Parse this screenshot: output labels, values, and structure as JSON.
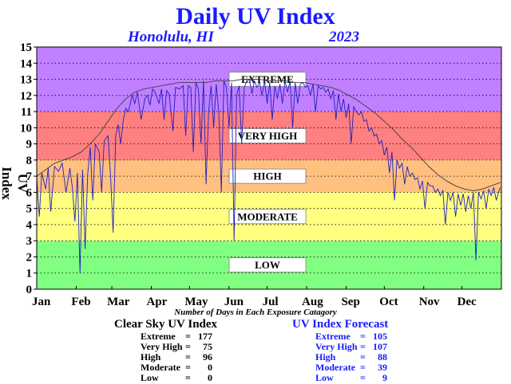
{
  "header": {
    "title": "Daily UV Index",
    "location": "Honolulu, HI",
    "year": "2023"
  },
  "chart_data": {
    "type": "line",
    "title": "Daily UV Index",
    "ylabel": "UV Index",
    "xlabel": "Number of Days in Each Exposure Catagory",
    "ylim": [
      0,
      15
    ],
    "yticks": [
      "0",
      "1",
      "2",
      "3",
      "4",
      "5",
      "6",
      "7",
      "8",
      "9",
      "10",
      "11",
      "12",
      "13",
      "14",
      "15"
    ],
    "months": [
      "Jan",
      "Feb",
      "Mar",
      "Apr",
      "May",
      "Jun",
      "Jul",
      "Aug",
      "Sep",
      "Oct",
      "Nov",
      "Dec"
    ],
    "bands": [
      {
        "label": "LOW",
        "from": 0,
        "to": 3,
        "color": "#80ff80"
      },
      {
        "label": "MODERATE",
        "from": 3,
        "to": 6,
        "color": "#ffff80"
      },
      {
        "label": "HIGH",
        "from": 6,
        "to": 8,
        "color": "#ffc080"
      },
      {
        "label": "VERY HIGH",
        "from": 8,
        "to": 11,
        "color": "#ff8080"
      },
      {
        "label": "EXTREME",
        "from": 11,
        "to": 15,
        "color": "#c080ff"
      }
    ],
    "series": [
      {
        "name": "Clear Sky UV Index",
        "color": "#404040",
        "points": [
          [
            1,
            7.0
          ],
          [
            8,
            7.4
          ],
          [
            15,
            7.8
          ],
          [
            22,
            8.0
          ],
          [
            29,
            8.2
          ],
          [
            36,
            8.5
          ],
          [
            43,
            9.0
          ],
          [
            50,
            9.6
          ],
          [
            57,
            10.4
          ],
          [
            64,
            11.2
          ],
          [
            71,
            11.8
          ],
          [
            78,
            12.2
          ],
          [
            85,
            12.4
          ],
          [
            92,
            12.5
          ],
          [
            99,
            12.6
          ],
          [
            106,
            12.7
          ],
          [
            113,
            12.8
          ],
          [
            120,
            12.8
          ],
          [
            127,
            12.8
          ],
          [
            134,
            12.8
          ],
          [
            141,
            12.9
          ],
          [
            148,
            12.9
          ],
          [
            155,
            12.9
          ],
          [
            162,
            13.0
          ],
          [
            169,
            13.0
          ],
          [
            176,
            13.0
          ],
          [
            183,
            12.9
          ],
          [
            190,
            12.9
          ],
          [
            197,
            12.9
          ],
          [
            204,
            12.8
          ],
          [
            211,
            12.8
          ],
          [
            218,
            12.7
          ],
          [
            225,
            12.6
          ],
          [
            232,
            12.5
          ],
          [
            239,
            12.3
          ],
          [
            246,
            12.0
          ],
          [
            253,
            11.7
          ],
          [
            260,
            11.3
          ],
          [
            267,
            10.9
          ],
          [
            274,
            10.4
          ],
          [
            281,
            9.9
          ],
          [
            288,
            9.3
          ],
          [
            295,
            8.8
          ],
          [
            302,
            8.2
          ],
          [
            309,
            7.6
          ],
          [
            316,
            7.1
          ],
          [
            323,
            6.7
          ],
          [
            330,
            6.4
          ],
          [
            337,
            6.2
          ],
          [
            344,
            6.1
          ],
          [
            351,
            6.2
          ],
          [
            358,
            6.4
          ],
          [
            365,
            6.6
          ]
        ]
      },
      {
        "name": "UV Index Forecast",
        "color": "#2020c0",
        "points": [
          [
            1,
            6.9
          ],
          [
            3,
            4.5
          ],
          [
            5,
            7.2
          ],
          [
            8,
            6.2
          ],
          [
            10,
            7.5
          ],
          [
            12,
            4.8
          ],
          [
            15,
            7.6
          ],
          [
            18,
            7.3
          ],
          [
            21,
            7.8
          ],
          [
            24,
            6.0
          ],
          [
            27,
            7.5
          ],
          [
            29,
            6.3
          ],
          [
            31,
            4.2
          ],
          [
            33,
            7.2
          ],
          [
            35,
            1.0
          ],
          [
            37,
            7.4
          ],
          [
            39,
            2.5
          ],
          [
            41,
            7.1
          ],
          [
            43,
            8.8
          ],
          [
            45,
            5.5
          ],
          [
            47,
            9.0
          ],
          [
            50,
            8.5
          ],
          [
            52,
            6.0
          ],
          [
            54,
            9.2
          ],
          [
            57,
            9.5
          ],
          [
            59,
            7.0
          ],
          [
            61,
            3.5
          ],
          [
            63,
            9.5
          ],
          [
            65,
            10.2
          ],
          [
            67,
            9.0
          ],
          [
            69,
            10.5
          ],
          [
            71,
            11.2
          ],
          [
            73,
            11.0
          ],
          [
            76,
            12.0
          ],
          [
            78,
            11.5
          ],
          [
            80,
            12.2
          ],
          [
            83,
            10.5
          ],
          [
            86,
            11.8
          ],
          [
            88,
            12.0
          ],
          [
            90,
            11.4
          ],
          [
            92,
            12.4
          ],
          [
            94,
            12.2
          ],
          [
            97,
            11.5
          ],
          [
            99,
            12.4
          ],
          [
            101,
            10.5
          ],
          [
            103,
            12.3
          ],
          [
            105,
            12.1
          ],
          [
            108,
            9.8
          ],
          [
            110,
            12.5
          ],
          [
            113,
            12.4
          ],
          [
            116,
            12.6
          ],
          [
            118,
            9.5
          ],
          [
            120,
            12.6
          ],
          [
            122,
            12.5
          ],
          [
            124,
            8.5
          ],
          [
            126,
            12.8
          ],
          [
            128,
            12.4
          ],
          [
            130,
            9.0
          ],
          [
            132,
            12.9
          ],
          [
            134,
            6.5
          ],
          [
            136,
            11.0
          ],
          [
            138,
            12.6
          ],
          [
            140,
            10.0
          ],
          [
            142,
            12.7
          ],
          [
            144,
            11.0
          ],
          [
            146,
            6.0
          ],
          [
            148,
            12.9
          ],
          [
            150,
            12.5
          ],
          [
            152,
            10.0
          ],
          [
            154,
            12.8
          ],
          [
            156,
            3.0
          ],
          [
            158,
            12.0
          ],
          [
            160,
            12.6
          ],
          [
            162,
            9.0
          ],
          [
            164,
            12.5
          ],
          [
            166,
            12.9
          ],
          [
            168,
            13.0
          ],
          [
            170,
            12.1
          ],
          [
            172,
            12.9
          ],
          [
            174,
            12.5
          ],
          [
            176,
            12.8
          ],
          [
            178,
            12.0
          ],
          [
            180,
            12.9
          ],
          [
            182,
            11.5
          ],
          [
            184,
            12.8
          ],
          [
            186,
            10.5
          ],
          [
            188,
            12.6
          ],
          [
            190,
            11.8
          ],
          [
            192,
            12.7
          ],
          [
            194,
            11.5
          ],
          [
            196,
            12.9
          ],
          [
            198,
            12.2
          ],
          [
            200,
            12.9
          ],
          [
            202,
            10.0
          ],
          [
            204,
            12.8
          ],
          [
            206,
            11.5
          ],
          [
            208,
            12.7
          ],
          [
            210,
            12.8
          ],
          [
            212,
            12.5
          ],
          [
            214,
            12.6
          ],
          [
            216,
            12.0
          ],
          [
            218,
            12.7
          ],
          [
            220,
            11.0
          ],
          [
            222,
            12.6
          ],
          [
            224,
            12.4
          ],
          [
            226,
            12.5
          ],
          [
            228,
            12.2
          ],
          [
            230,
            12.4
          ],
          [
            232,
            11.8
          ],
          [
            234,
            12.3
          ],
          [
            236,
            10.5
          ],
          [
            238,
            12.1
          ],
          [
            240,
            11.0
          ],
          [
            242,
            11.8
          ],
          [
            244,
            10.6
          ],
          [
            246,
            11.5
          ],
          [
            248,
            9.0
          ],
          [
            250,
            11.3
          ],
          [
            252,
            11.0
          ],
          [
            254,
            10.8
          ],
          [
            256,
            11.0
          ],
          [
            258,
            10.4
          ],
          [
            260,
            10.5
          ],
          [
            262,
            9.8
          ],
          [
            264,
            10.0
          ],
          [
            266,
            9.5
          ],
          [
            268,
            9.6
          ],
          [
            270,
            9.0
          ],
          [
            272,
            9.2
          ],
          [
            274,
            8.3
          ],
          [
            276,
            8.8
          ],
          [
            278,
            7.2
          ],
          [
            280,
            8.5
          ],
          [
            282,
            5.5
          ],
          [
            284,
            8.0
          ],
          [
            286,
            7.5
          ],
          [
            288,
            7.8
          ],
          [
            290,
            6.5
          ],
          [
            292,
            7.6
          ],
          [
            294,
            7.0
          ],
          [
            296,
            7.2
          ],
          [
            298,
            6.8
          ],
          [
            300,
            6.9
          ],
          [
            302,
            6.2
          ],
          [
            304,
            6.7
          ],
          [
            306,
            5.0
          ],
          [
            308,
            6.6
          ],
          [
            310,
            6.4
          ],
          [
            312,
            6.4
          ],
          [
            314,
            6.0
          ],
          [
            316,
            6.2
          ],
          [
            318,
            5.8
          ],
          [
            320,
            6.1
          ],
          [
            322,
            4.0
          ],
          [
            324,
            6.0
          ],
          [
            326,
            5.5
          ],
          [
            328,
            6.0
          ],
          [
            330,
            4.5
          ],
          [
            332,
            5.9
          ],
          [
            334,
            5.2
          ],
          [
            336,
            5.9
          ],
          [
            338,
            4.8
          ],
          [
            340,
            5.8
          ],
          [
            342,
            5.0
          ],
          [
            344,
            6.0
          ],
          [
            346,
            1.8
          ],
          [
            348,
            6.0
          ],
          [
            350,
            5.6
          ],
          [
            352,
            6.1
          ],
          [
            354,
            5.0
          ],
          [
            356,
            6.2
          ],
          [
            358,
            5.8
          ],
          [
            360,
            6.3
          ],
          [
            362,
            5.5
          ],
          [
            365,
            6.3
          ]
        ]
      }
    ]
  },
  "summary": {
    "clear_sky": {
      "title": "Clear Sky UV Index",
      "rows": [
        {
          "name": "Extreme",
          "eq": "=",
          "value": "177"
        },
        {
          "name": "Very High",
          "eq": "=",
          "value": "75"
        },
        {
          "name": "High",
          "eq": "=",
          "value": "96"
        },
        {
          "name": "Moderate",
          "eq": "=",
          "value": "0"
        },
        {
          "name": "Low",
          "eq": "=",
          "value": "0"
        }
      ]
    },
    "forecast": {
      "title": "UV Index Forecast",
      "rows": [
        {
          "name": "Extreme",
          "eq": "=",
          "value": "105"
        },
        {
          "name": "Very High",
          "eq": "=",
          "value": "107"
        },
        {
          "name": "High",
          "eq": "=",
          "value": "88"
        },
        {
          "name": "Moderate",
          "eq": "=",
          "value": "39"
        },
        {
          "name": "Low",
          "eq": "=",
          "value": "9"
        }
      ]
    }
  }
}
